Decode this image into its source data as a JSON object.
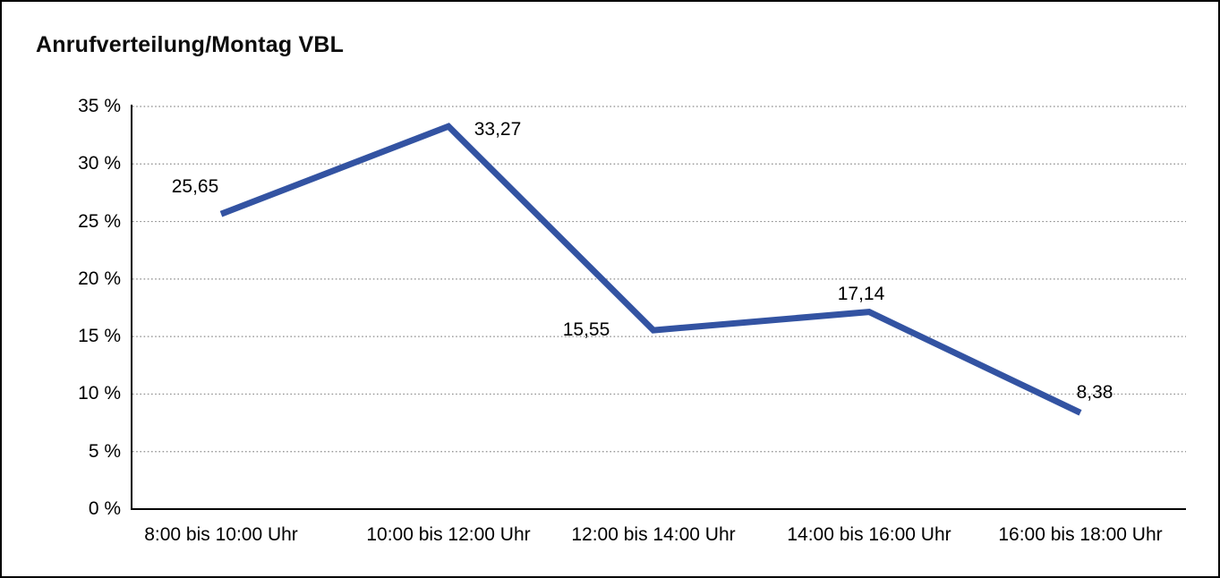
{
  "frame": {
    "background_color": "#ffffff",
    "border_color": "#000000"
  },
  "chart_data": {
    "type": "line",
    "title": "Anrufverteilung/Montag VBL",
    "categories": [
      "8:00 bis 10:00 Uhr",
      "10:00 bis 12:00 Uhr",
      "12:00 bis 14:00 Uhr",
      "14:00 bis 16:00 Uhr",
      "16:00 bis 18:00 Uhr"
    ],
    "values": [
      25.65,
      33.27,
      15.55,
      17.14,
      8.38
    ],
    "value_labels": [
      "25,65",
      "33,27",
      "15,55",
      "17,14",
      "8,38"
    ],
    "unit": "%",
    "y_ticks": [
      "35 %",
      "30 %",
      "25 %",
      "20 %",
      "15 %",
      "10 %",
      "5 %",
      "0 %"
    ],
    "y_tick_values": [
      35,
      30,
      25,
      20,
      15,
      10,
      5,
      0
    ],
    "ylim": [
      0,
      35
    ],
    "xlabel": "",
    "ylabel": "",
    "grid": "horizontal-dotted",
    "legend": "none",
    "line_color": "#3353A2",
    "grid_color": "#8c8c8c",
    "axis_color": "#000000",
    "text_color": "#000000"
  }
}
